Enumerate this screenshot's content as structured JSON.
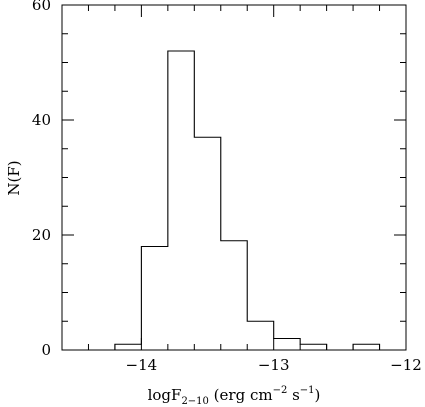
{
  "chart_data": {
    "type": "bar",
    "style": "step-histogram",
    "bin_edges": [
      -14.6,
      -14.4,
      -14.2,
      -14.0,
      -13.8,
      -13.6,
      -13.4,
      -13.2,
      -13.0,
      -12.8,
      -12.6,
      -12.4,
      -12.2,
      -12.0
    ],
    "values": [
      0,
      0,
      1,
      18,
      52,
      37,
      19,
      5,
      2,
      1,
      0,
      1,
      0
    ],
    "xlim": [
      -14.6,
      -12.0
    ],
    "ylim": [
      0,
      60
    ],
    "x_ticks": [
      -14,
      -13,
      -12
    ],
    "x_tick_labels": [
      "−14",
      "−13",
      "−12"
    ],
    "y_ticks": [
      0,
      20,
      40,
      60
    ],
    "y_tick_labels": [
      "0",
      "20",
      "40",
      "60"
    ],
    "xlabel": {
      "main": "logF",
      "subscript": "2−10",
      "open": " (erg cm",
      "exp1": "−2",
      "mid": " s",
      "exp2": "−1",
      "close": ")"
    },
    "ylabel": "N(F)",
    "grid": false,
    "line_color": "#000000"
  }
}
